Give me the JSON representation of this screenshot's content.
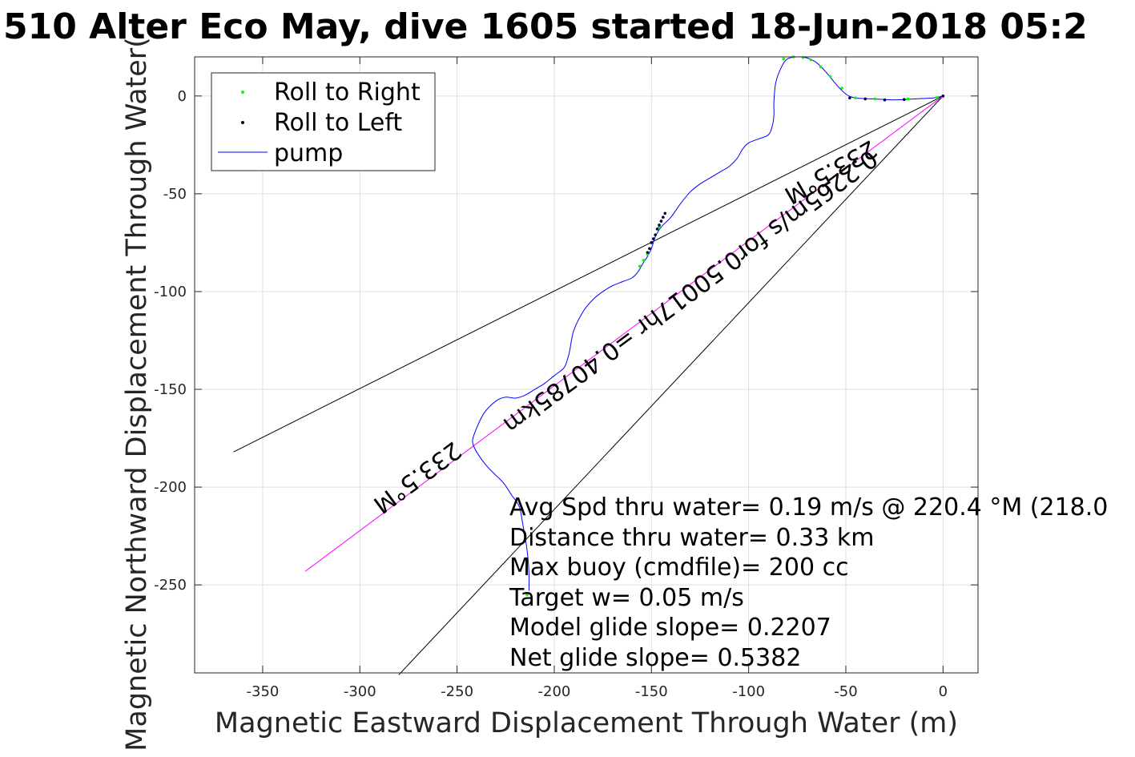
{
  "chart_data": {
    "type": "line",
    "title": "510 Alter Eco May, dive 1605 started 18-Jun-2018 05:2",
    "xlabel": "Magnetic Eastward Displacement Through Water (m)",
    "ylabel": "Magnetic Northward Displacement Through Water(",
    "xlim": [
      -385,
      18
    ],
    "ylim": [
      -295,
      20
    ],
    "xticks": [
      -350,
      -300,
      -250,
      -200,
      -150,
      -100,
      -50,
      0
    ],
    "yticks": [
      0,
      -50,
      -100,
      -150,
      -200,
      -250
    ],
    "grid": true,
    "legend_position": "top-left",
    "series": [
      {
        "name": "pump",
        "color": "#0000ff",
        "x": [
          0,
          -5,
          -15,
          -25,
          -35,
          -45,
          -50,
          -55,
          -60,
          -65,
          -70,
          -75,
          -80,
          -83,
          -86,
          -87,
          -87,
          -88,
          -90,
          -95,
          -100,
          -103,
          -106,
          -110,
          -115,
          -120,
          -125,
          -130,
          -135,
          -140,
          -145,
          -148,
          -150,
          -152,
          -154,
          -157,
          -160,
          -165,
          -170,
          -175,
          -180,
          -185,
          -190,
          -192,
          -193,
          -195,
          -200,
          -205,
          -210,
          -215,
          -220,
          -225,
          -230,
          -236,
          -240,
          -242,
          -241,
          -238,
          -234,
          -230,
          -226,
          -222,
          -218,
          -216,
          -214,
          -213,
          -213
        ],
        "y": [
          0,
          -1,
          -1.5,
          -2,
          -1.5,
          -1,
          1,
          6,
          12,
          17,
          19.5,
          20,
          19,
          15,
          7,
          -3,
          -10,
          -16,
          -20,
          -22,
          -24,
          -27,
          -32,
          -36,
          -39,
          -42,
          -45,
          -49,
          -55,
          -62,
          -67,
          -72,
          -78,
          -82,
          -85,
          -90,
          -93,
          -95,
          -97,
          -100,
          -104,
          -110,
          -120,
          -130,
          -134,
          -139,
          -143,
          -147,
          -150,
          -153,
          -154.5,
          -154,
          -156,
          -162,
          -170,
          -176,
          -180,
          -185,
          -190,
          -194,
          -198,
          -204,
          -210,
          -220,
          -232,
          -244,
          -253
        ]
      },
      {
        "name": "Roll to Right",
        "color": "#00ff00",
        "x": [
          -3,
          -18,
          -35,
          -45,
          -52,
          -58,
          -63,
          -68,
          -72,
          -77,
          -82,
          -146,
          -150,
          -152,
          -154,
          -156,
          -214
        ],
        "y": [
          -0.8,
          -1.5,
          -1.5,
          -1,
          4,
          10,
          15,
          18.5,
          19.7,
          20,
          19,
          -67,
          -75,
          -81,
          -84,
          -87,
          -255
        ]
      },
      {
        "name": "Roll to Left",
        "color": "#000040",
        "x": [
          0,
          -20,
          -30,
          -40,
          -48,
          -143,
          -144,
          -145,
          -146,
          -147,
          -148,
          -149,
          -150,
          -151,
          -152
        ],
        "y": [
          0,
          -1.8,
          -2,
          -1.5,
          -1,
          -60,
          -62,
          -64,
          -66,
          -68,
          -71,
          -73,
          -75,
          -78,
          -80
        ]
      }
    ],
    "reference_lines": [
      {
        "color": "#000000",
        "x": [
          0,
          -365
        ],
        "y": [
          0,
          -182
        ]
      },
      {
        "color": "#000000",
        "x": [
          0,
          -280
        ],
        "y": [
          0,
          -296
        ]
      },
      {
        "color": "#ff00ff",
        "x": [
          0,
          -328
        ],
        "y": [
          0,
          -243
        ]
      }
    ],
    "rotated_labels": [
      {
        "text": "233.5°M",
        "rotation_deg": 150
      },
      {
        "text": "0.2265m/s for0.50017hr =0.40785km",
        "rotation_deg": 143.5
      },
      {
        "text": "233.5°M",
        "rotation_deg": 143.5
      }
    ],
    "annotations": [
      "Avg Spd thru water=  0.19 m/s @ 220.4 °M (218.0",
      "Distance thru water=  0.33 km",
      "Max buoy (cmdfile)= 200 cc",
      "Target w= 0.05 m/s",
      "Model glide slope= 0.2207",
      "Net glide slope= 0.5382"
    ],
    "legend": [
      {
        "label": "Roll to Right",
        "kind": "dot",
        "color": "#00ff00"
      },
      {
        "label": "Roll to Left",
        "kind": "dot",
        "color": "#000000"
      },
      {
        "label": "pump",
        "kind": "line",
        "color": "#0000ff"
      }
    ]
  }
}
